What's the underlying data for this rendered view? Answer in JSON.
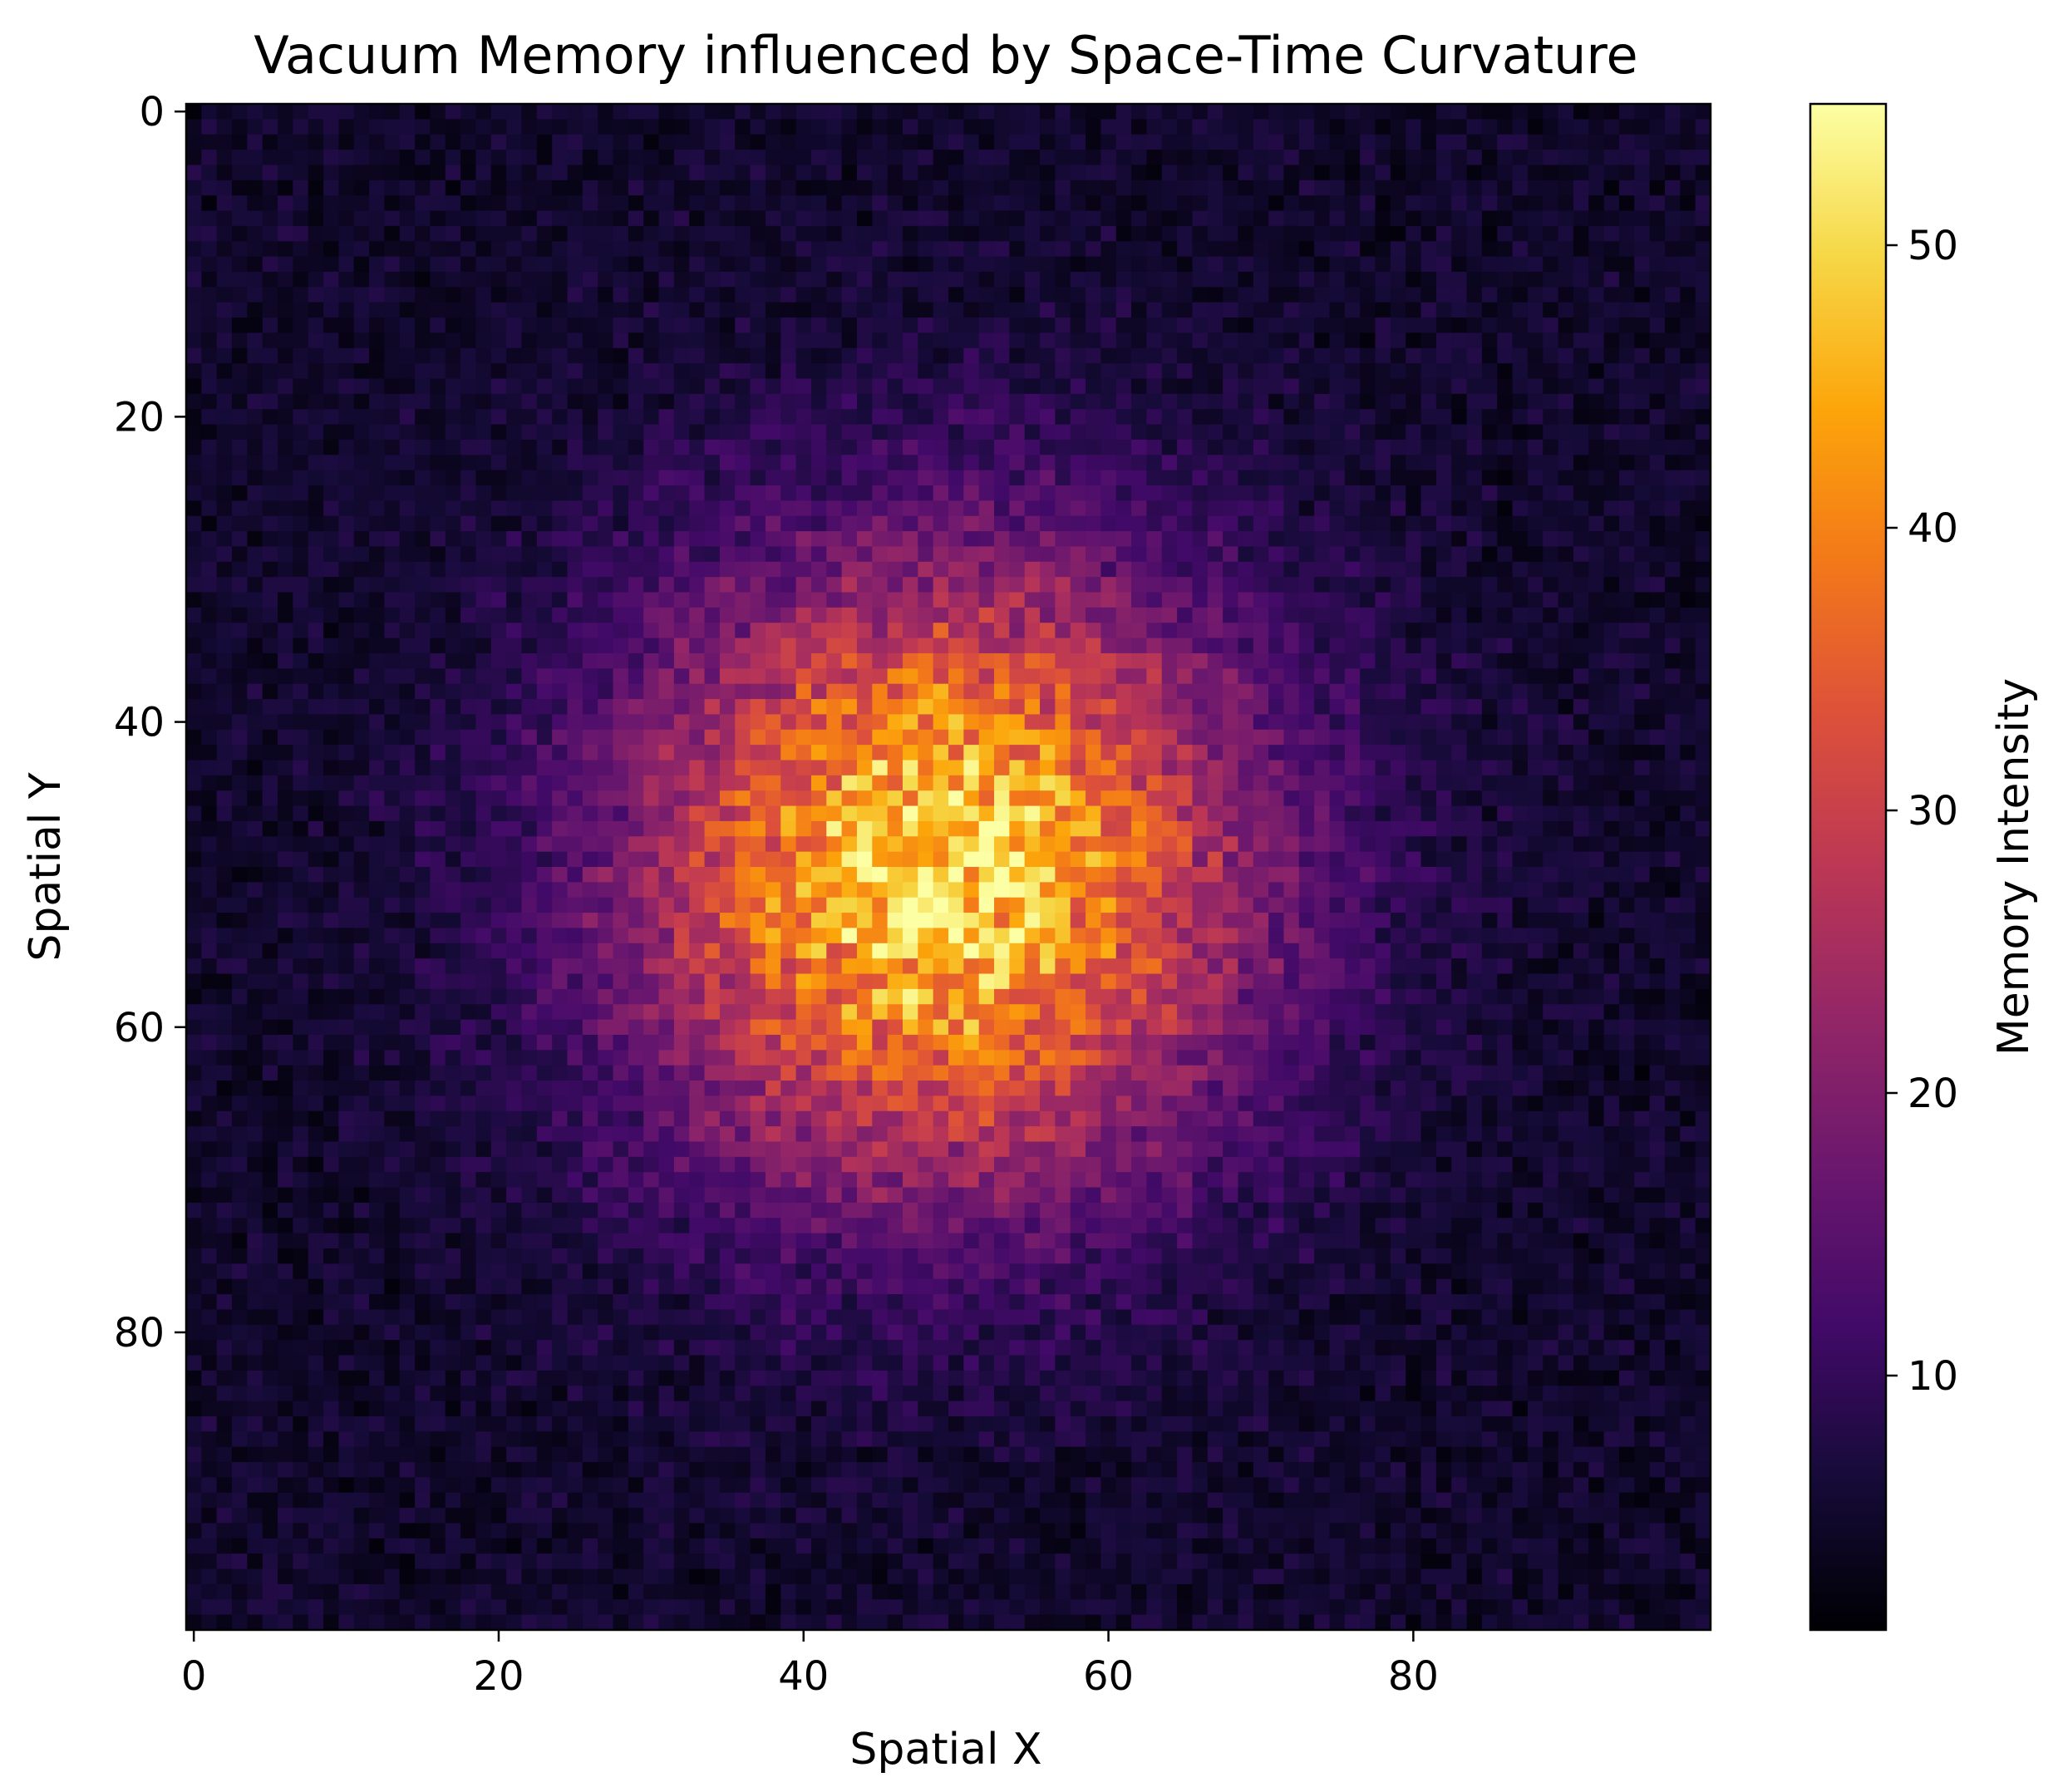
{
  "chart_data": {
    "type": "heatmap",
    "title": "Vacuum Memory influenced by Space-Time Curvature",
    "xlabel": "Spatial X",
    "ylabel": "Spatial Y",
    "colorbar_label": "Memory Intensity",
    "colormap": "inferno",
    "grid_size": [
      100,
      100
    ],
    "xlim": [
      -0.5,
      99.5
    ],
    "ylim": [
      99.5,
      -0.5
    ],
    "y_axis_inverted": true,
    "x_ticks": [
      0,
      20,
      40,
      60,
      80
    ],
    "y_ticks": [
      0,
      20,
      40,
      60,
      80
    ],
    "x_tick_labels": [
      "0",
      "20",
      "40",
      "60",
      "80"
    ],
    "y_tick_labels": [
      "0",
      "20",
      "40",
      "60",
      "80"
    ],
    "color_range": [
      1,
      55
    ],
    "colorbar_ticks": [
      10,
      20,
      30,
      40,
      50
    ],
    "colorbar_tick_labels": [
      "10",
      "20",
      "30",
      "40",
      "50"
    ],
    "field": {
      "model": "gaussian peak plus uniform noise",
      "center": [
        49,
        50
      ],
      "peak": 45,
      "sigma": 14,
      "baseline": 5,
      "noise_amplitude": 5,
      "min": 1,
      "max": 55
    },
    "inferno_stops": [
      [
        0.0,
        "#000004"
      ],
      [
        0.1,
        "#160b39"
      ],
      [
        0.2,
        "#420a68"
      ],
      [
        0.3,
        "#6a176e"
      ],
      [
        0.4,
        "#932667"
      ],
      [
        0.5,
        "#bc3754"
      ],
      [
        0.6,
        "#dd513a"
      ],
      [
        0.7,
        "#f37819"
      ],
      [
        0.8,
        "#fca50a"
      ],
      [
        0.9,
        "#f6d746"
      ],
      [
        1.0,
        "#fcffa4"
      ]
    ]
  }
}
